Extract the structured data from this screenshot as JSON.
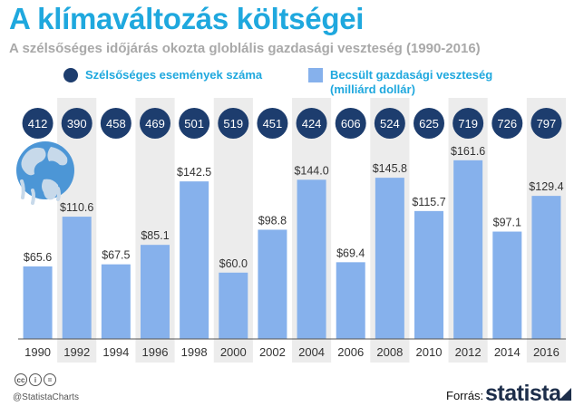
{
  "title": "A klímaváltozás költségei",
  "subtitle": "A szélsőséges időjárás okozta globlális gazdasági veszteség (1990-2016)",
  "legend": {
    "events_label": "Szélsőséges események száma",
    "loss_label_line1": "Becsült gazdasági veszteség",
    "loss_label_line2": "(milliárd dollár)"
  },
  "colors": {
    "title": "#1fa8de",
    "bar": "#86b1ec",
    "circle": "#1d3d6e",
    "band": "#ececec"
  },
  "chart_data": {
    "type": "bar",
    "categories": [
      "1990",
      "1992",
      "1994",
      "1996",
      "1998",
      "2000",
      "2002",
      "2004",
      "2006",
      "2008",
      "2010",
      "2012",
      "2014",
      "2016"
    ],
    "series": [
      {
        "name": "Becsült gazdasági veszteség (milliárd dollár)",
        "values": [
          65.6,
          110.6,
          67.5,
          85.1,
          142.5,
          60.0,
          98.8,
          144.0,
          69.4,
          145.8,
          115.7,
          161.6,
          97.1,
          129.4
        ],
        "labels": [
          "$65.6",
          "$110.6",
          "$67.5",
          "$85.1",
          "$142.5",
          "$60.0",
          "$98.8",
          "$144.0",
          "$69.4",
          "$145.8",
          "$115.7",
          "$161.6",
          "$97.1",
          "$129.4"
        ]
      },
      {
        "name": "Szélsőséges események száma",
        "values": [
          412,
          390,
          458,
          469,
          501,
          519,
          451,
          424,
          606,
          524,
          625,
          719,
          726,
          797
        ]
      }
    ],
    "ylim": [
      0,
      175
    ]
  },
  "footer": {
    "handle": "@StatistaCharts",
    "source_label": "Forrás:",
    "brand": "statista"
  }
}
